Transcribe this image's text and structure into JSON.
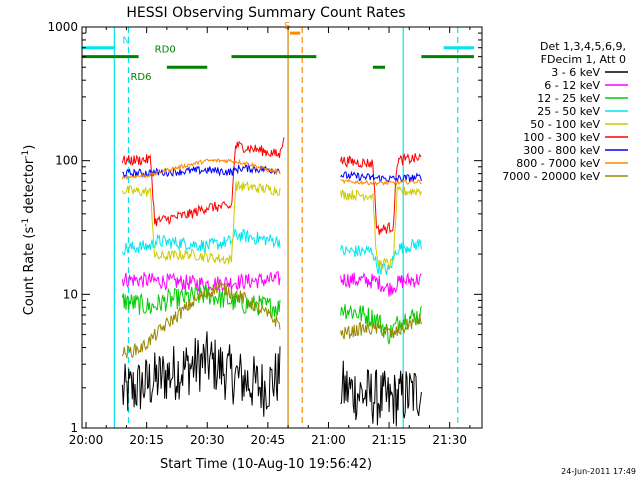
{
  "chart_data": {
    "type": "line",
    "title": "HESSI Observing Summary Count Rates",
    "xlabel": "Start Time (10-Aug-10 19:56:42)",
    "ylabel_main": "Count Rate (s",
    "ylabel_sup1": "-1",
    "ylabel_mid": " detector",
    "ylabel_sup2": "-1",
    "ylabel_end": ")",
    "yscale": "log",
    "ylim": [
      1,
      1000
    ],
    "xlim_min": [
      -1,
      98
    ],
    "x_ticks": [
      {
        "v": 0,
        "label": "20:00"
      },
      {
        "v": 15,
        "label": "20:15"
      },
      {
        "v": 30,
        "label": "20:30"
      },
      {
        "v": 45,
        "label": "20:45"
      },
      {
        "v": 60,
        "label": "21:00"
      },
      {
        "v": 75,
        "label": "21:15"
      },
      {
        "v": 90,
        "label": "21:30"
      }
    ],
    "y_ticks": [
      {
        "v": 1,
        "label": "1"
      },
      {
        "v": 10,
        "label": "10"
      },
      {
        "v": 100,
        "label": "100"
      },
      {
        "v": 1000,
        "label": "1000"
      }
    ],
    "legend_header": [
      "Det 1,3,4,5,6,9,",
      "FDecim 1, Att 0"
    ],
    "series": [
      {
        "name": "3 - 6 keV",
        "color": "#000000",
        "segments": [
          [
            [
              9,
              1.8
            ],
            [
              16,
              2.2
            ],
            [
              20,
              2.5
            ],
            [
              30,
              3.2
            ],
            [
              36,
              2.5
            ],
            [
              44,
              2.0
            ],
            [
              48,
              2.5
            ]
          ],
          [
            [
              63,
              2.0
            ],
            [
              68,
              1.8
            ],
            [
              75,
              1.6
            ],
            [
              83,
              1.9
            ]
          ]
        ],
        "noise": 0.22
      },
      {
        "name": "6 - 12 keV",
        "color": "#ff00ff",
        "segments": [
          [
            [
              9,
              13
            ],
            [
              20,
              12.5
            ],
            [
              30,
              12
            ],
            [
              40,
              12.5
            ],
            [
              48,
              13
            ]
          ],
          [
            [
              63,
              13
            ],
            [
              72,
              12.5
            ],
            [
              75,
              11
            ],
            [
              78,
              12.5
            ],
            [
              83,
              13
            ]
          ]
        ],
        "noise": 0.06
      },
      {
        "name": "12 - 25 keV",
        "color": "#00cc00",
        "segments": [
          [
            [
              9,
              9
            ],
            [
              16,
              8
            ],
            [
              20,
              9
            ],
            [
              30,
              10
            ],
            [
              38,
              8.5
            ],
            [
              48,
              8
            ]
          ],
          [
            [
              63,
              8
            ],
            [
              72,
              6.5
            ],
            [
              75,
              5
            ],
            [
              78,
              6.5
            ],
            [
              83,
              7
            ]
          ]
        ],
        "noise": 0.08
      },
      {
        "name": "25 - 50 keV",
        "color": "#00e5ee",
        "segments": [
          [
            [
              9,
              22
            ],
            [
              16,
              23
            ],
            [
              17,
              25
            ],
            [
              25,
              24
            ],
            [
              30,
              23
            ],
            [
              36,
              25
            ],
            [
              37,
              28
            ],
            [
              43,
              26
            ],
            [
              48,
              25
            ]
          ],
          [
            [
              63,
              21
            ],
            [
              71,
              21
            ],
            [
              72,
              16
            ],
            [
              75,
              15
            ],
            [
              77,
              22
            ],
            [
              83,
              24
            ]
          ]
        ],
        "noise": 0.05
      },
      {
        "name": "50 - 100 keV",
        "color": "#cccc00",
        "segments": [
          [
            [
              9,
              60
            ],
            [
              16,
              58
            ],
            [
              17,
              19
            ],
            [
              26,
              20
            ],
            [
              30,
              19
            ],
            [
              36,
              18
            ],
            [
              37,
              65
            ],
            [
              43,
              62
            ],
            [
              48,
              60
            ]
          ],
          [
            [
              63,
              56
            ],
            [
              71,
              55
            ],
            [
              72,
              17
            ],
            [
              76,
              17
            ],
            [
              77,
              58
            ],
            [
              83,
              60
            ]
          ]
        ],
        "noise": 0.04
      },
      {
        "name": "100 - 300 keV",
        "color": "#ff0000",
        "segments": [
          [
            [
              9,
              100
            ],
            [
              16,
              102
            ],
            [
              17,
              35
            ],
            [
              26,
              40
            ],
            [
              30,
              45
            ],
            [
              36,
              45
            ],
            [
              37,
              130
            ],
            [
              43,
              120
            ],
            [
              48,
              110
            ],
            [
              49,
              160
            ]
          ],
          [
            [
              63,
              100
            ],
            [
              71,
              95
            ],
            [
              72,
              30
            ],
            [
              76,
              32
            ],
            [
              77,
              100
            ],
            [
              83,
              105
            ]
          ]
        ],
        "noise": 0.04
      },
      {
        "name": "300 - 800 keV",
        "color": "#0000ff",
        "segments": [
          [
            [
              9,
              80
            ],
            [
              20,
              82
            ],
            [
              30,
              85
            ],
            [
              36,
              82
            ],
            [
              38,
              88
            ],
            [
              48,
              85
            ]
          ],
          [
            [
              63,
              78
            ],
            [
              72,
              74
            ],
            [
              76,
              73
            ],
            [
              83,
              75
            ]
          ]
        ],
        "noise": 0.03
      },
      {
        "name": "800 - 7000 keV",
        "color": "#ff8800",
        "segments": [
          [
            [
              9,
              75
            ],
            [
              16,
              78
            ],
            [
              20,
              85
            ],
            [
              30,
              100
            ],
            [
              36,
              100
            ],
            [
              40,
              95
            ],
            [
              45,
              85
            ],
            [
              48,
              82
            ]
          ],
          [
            [
              63,
              70
            ],
            [
              72,
              68
            ],
            [
              76,
              68
            ],
            [
              83,
              70
            ]
          ]
        ],
        "noise": 0.015
      },
      {
        "name": "7000 - 20000 keV",
        "color": "#998800",
        "segments": [
          [
            [
              9,
              3.6
            ],
            [
              14,
              4.0
            ],
            [
              20,
              6.0
            ],
            [
              28,
              9.5
            ],
            [
              33,
              11.5
            ],
            [
              40,
              9.0
            ],
            [
              45,
              7.0
            ],
            [
              48,
              6.0
            ]
          ],
          [
            [
              63,
              5.0
            ],
            [
              68,
              5.5
            ],
            [
              73,
              5.5
            ],
            [
              76,
              5.0
            ],
            [
              80,
              6.0
            ],
            [
              83,
              6.5
            ]
          ]
        ],
        "noise": 0.05
      }
    ],
    "flag_lines": [
      {
        "name": "N",
        "color": "#00e5ee",
        "level": 700,
        "segments": [
          [
            -1,
            7
          ],
          [
            88.5,
            96
          ]
        ],
        "label_x": 8
      },
      {
        "name": "RD0",
        "color": "#008000",
        "level": 600,
        "segments": [
          [
            -1,
            13
          ],
          [
            36,
            57
          ],
          [
            83,
            96
          ]
        ],
        "label_x": 16
      },
      {
        "name": "RD6",
        "color": "#008000",
        "level": 500,
        "segments": [
          [
            20,
            30
          ],
          [
            71,
            74
          ]
        ],
        "label_x": 10
      },
      {
        "name": "S",
        "color": "#ff8800",
        "level": 900,
        "segments": [
          [
            50.5,
            53
          ]
        ],
        "label_x": 48
      }
    ],
    "vlines": [
      {
        "x": 7,
        "color": "#00e5ee",
        "style": "solid"
      },
      {
        "x": 10.5,
        "color": "#00e5ee",
        "style": "dashed"
      },
      {
        "x": 50,
        "color": "#cc8800",
        "style": "solid"
      },
      {
        "x": 53.5,
        "color": "#ff8800",
        "style": "dashed"
      },
      {
        "x": 78.5,
        "color": "#00e5ee",
        "style": "solid"
      },
      {
        "x": 92,
        "color": "#00e5ee",
        "style": "dashed"
      }
    ]
  },
  "footer": {
    "date": "24-Jun-2011 17:49"
  }
}
